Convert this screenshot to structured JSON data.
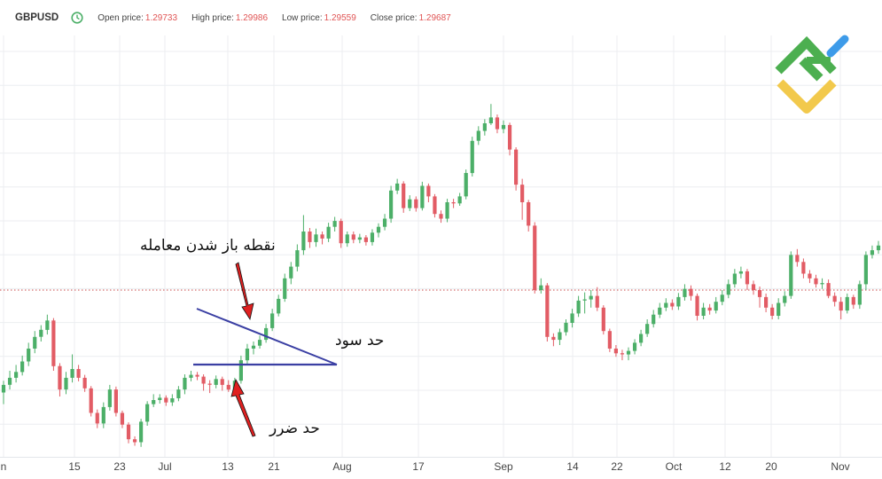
{
  "header": {
    "symbol": "GBPUSD",
    "clock_icon": "clock-icon",
    "open_label": "Open price:",
    "open_value": "1.29733",
    "high_label": "High price:",
    "high_value": "1.29986",
    "low_label": "Low price:",
    "low_value": "1.29559",
    "close_label": "Close price:",
    "close_value": "1.29687",
    "value_color": "#e05555"
  },
  "logo": {
    "icon": "litefinance-logo-icon",
    "colors": [
      "#4caf50",
      "#f2c94c",
      "#3d9be9"
    ]
  },
  "annotations": {
    "entry": "نقطه باز شدن معامله",
    "take_profit": "حد سود",
    "stop_loss": "حد ضرر",
    "triangle_color": "#3a3fa3",
    "arrow_color": "#e02020"
  },
  "chart_data": {
    "type": "candlestick",
    "symbol": "GBPUSD",
    "x_tick_labels": [
      "n",
      "15",
      "23",
      "Jul",
      "13",
      "21",
      "Aug",
      "17",
      "Sep",
      "14",
      "22",
      "Oct",
      "12",
      "20",
      "Nov"
    ],
    "reference_line_price": 1.264,
    "price_range": [
      1.2355,
      1.3075
    ],
    "grid": true,
    "up_color": "#4caf68",
    "down_color": "#e25c65",
    "candles": [
      [
        1.2465,
        1.2478,
        1.2485,
        1.2445
      ],
      [
        1.2478,
        1.249,
        1.2502,
        1.247
      ],
      [
        1.249,
        1.25,
        1.2512,
        1.2482
      ],
      [
        1.25,
        1.2518,
        1.2528,
        1.2494
      ],
      [
        1.2518,
        1.254,
        1.255,
        1.251
      ],
      [
        1.254,
        1.256,
        1.257,
        1.2532
      ],
      [
        1.256,
        1.2572,
        1.258,
        1.2552
      ],
      [
        1.2572,
        1.2588,
        1.2598,
        1.2564
      ],
      [
        1.2588,
        1.251,
        1.2592,
        1.2502
      ],
      [
        1.251,
        1.247,
        1.2515,
        1.2458
      ],
      [
        1.247,
        1.249,
        1.25,
        1.2462
      ],
      [
        1.249,
        1.2505,
        1.253,
        1.2482
      ],
      [
        1.2505,
        1.249,
        1.2512,
        1.2484
      ],
      [
        1.249,
        1.2472,
        1.2495,
        1.2466
      ],
      [
        1.2472,
        1.243,
        1.2476,
        1.2424
      ],
      [
        1.243,
        1.2412,
        1.2436,
        1.2404
      ],
      [
        1.2412,
        1.244,
        1.2448,
        1.2404
      ],
      [
        1.244,
        1.247,
        1.2478,
        1.2434
      ],
      [
        1.247,
        1.243,
        1.2475,
        1.2424
      ],
      [
        1.243,
        1.241,
        1.2434,
        1.2404
      ],
      [
        1.241,
        1.2385,
        1.2414,
        1.2378
      ],
      [
        1.2385,
        1.238,
        1.239,
        1.2374
      ],
      [
        1.238,
        1.2415,
        1.242,
        1.2372
      ],
      [
        1.2415,
        1.2445,
        1.245,
        1.2408
      ],
      [
        1.2445,
        1.2452,
        1.2462,
        1.244
      ],
      [
        1.2452,
        1.2456,
        1.2462,
        1.2446
      ],
      [
        1.2456,
        1.2448,
        1.246,
        1.2442
      ],
      [
        1.2448,
        1.2455,
        1.2462,
        1.2442
      ],
      [
        1.2455,
        1.247,
        1.2476,
        1.245
      ],
      [
        1.247,
        1.249,
        1.2496,
        1.2462
      ],
      [
        1.249,
        1.2495,
        1.2502,
        1.2484
      ],
      [
        1.2495,
        1.2492,
        1.25,
        1.2486
      ],
      [
        1.2492,
        1.248,
        1.2496,
        1.2468
      ],
      [
        1.248,
        1.2478,
        1.2486,
        1.2464
      ],
      [
        1.2478,
        1.2488,
        1.2494,
        1.2472
      ],
      [
        1.2488,
        1.2478,
        1.2492,
        1.2468
      ],
      [
        1.2478,
        1.247,
        1.2486,
        1.2466
      ],
      [
        1.247,
        1.2485,
        1.249,
        1.2465
      ],
      [
        1.2485,
        1.252,
        1.2528,
        1.248
      ],
      [
        1.252,
        1.254,
        1.2548,
        1.2514
      ],
      [
        1.254,
        1.2545,
        1.2552,
        1.253
      ],
      [
        1.2545,
        1.2555,
        1.2562,
        1.254
      ],
      [
        1.2555,
        1.2575,
        1.2582,
        1.255
      ],
      [
        1.2575,
        1.26,
        1.2608,
        1.257
      ],
      [
        1.26,
        1.2625,
        1.2632,
        1.2595
      ],
      [
        1.2625,
        1.266,
        1.2668,
        1.262
      ],
      [
        1.266,
        1.268,
        1.2688,
        1.265
      ],
      [
        1.268,
        1.2708,
        1.2718,
        1.2672
      ],
      [
        1.2708,
        1.274,
        1.2768,
        1.27
      ],
      [
        1.274,
        1.2722,
        1.2746,
        1.2712
      ],
      [
        1.2722,
        1.2735,
        1.2745,
        1.2714
      ],
      [
        1.2735,
        1.2728,
        1.274,
        1.2718
      ],
      [
        1.2728,
        1.2748,
        1.2755,
        1.2722
      ],
      [
        1.2748,
        1.2758,
        1.2765,
        1.274
      ],
      [
        1.2758,
        1.272,
        1.2762,
        1.2712
      ],
      [
        1.272,
        1.2735,
        1.274,
        1.2714
      ],
      [
        1.2735,
        1.2726,
        1.274,
        1.272
      ],
      [
        1.2726,
        1.273,
        1.2736,
        1.272
      ],
      [
        1.273,
        1.2722,
        1.2734,
        1.2716
      ],
      [
        1.2722,
        1.2738,
        1.2744,
        1.2716
      ],
      [
        1.2738,
        1.2748,
        1.2754,
        1.273
      ],
      [
        1.2748,
        1.2762,
        1.277,
        1.2742
      ],
      [
        1.2762,
        1.281,
        1.2818,
        1.2755
      ],
      [
        1.281,
        1.2822,
        1.283,
        1.2804
      ],
      [
        1.2822,
        1.278,
        1.2826,
        1.2772
      ],
      [
        1.278,
        1.2795,
        1.2802,
        1.2775
      ],
      [
        1.2795,
        1.278,
        1.28,
        1.2774
      ],
      [
        1.278,
        1.2818,
        1.2825,
        1.2776
      ],
      [
        1.2818,
        1.28,
        1.2822,
        1.279
      ],
      [
        1.28,
        1.277,
        1.2804,
        1.2764
      ],
      [
        1.277,
        1.2762,
        1.2776,
        1.2755
      ],
      [
        1.2762,
        1.279,
        1.2796,
        1.2756
      ],
      [
        1.279,
        1.2788,
        1.2796,
        1.278
      ],
      [
        1.2788,
        1.28,
        1.2806,
        1.2784
      ],
      [
        1.28,
        1.284,
        1.2846,
        1.2795
      ],
      [
        1.284,
        1.2895,
        1.2902,
        1.2834
      ],
      [
        1.2895,
        1.2912,
        1.292,
        1.2888
      ],
      [
        1.2912,
        1.2925,
        1.2932,
        1.2904
      ],
      [
        1.2925,
        1.2935,
        1.2958,
        1.2922
      ],
      [
        1.2935,
        1.2915,
        1.294,
        1.2908
      ],
      [
        1.2915,
        1.2922,
        1.293,
        1.2908
      ],
      [
        1.2922,
        1.288,
        1.2926,
        1.287
      ],
      [
        1.288,
        1.282,
        1.2884,
        1.281
      ],
      [
        1.282,
        1.279,
        1.283,
        1.276
      ],
      [
        1.279,
        1.275,
        1.2794,
        1.274
      ],
      [
        1.275,
        1.264,
        1.2756,
        1.2634
      ],
      [
        1.264,
        1.2648,
        1.266,
        1.2634
      ],
      [
        1.2648,
        1.256,
        1.2652,
        1.2552
      ],
      [
        1.256,
        1.2555,
        1.2566,
        1.2544
      ],
      [
        1.2555,
        1.2568,
        1.2574,
        1.2546
      ],
      [
        1.2568,
        1.2584,
        1.259,
        1.2562
      ],
      [
        1.2584,
        1.26,
        1.2608,
        1.2576
      ],
      [
        1.26,
        1.2622,
        1.263,
        1.2594
      ],
      [
        1.2622,
        1.2624,
        1.2636,
        1.26
      ],
      [
        1.2624,
        1.263,
        1.264,
        1.261
      ],
      [
        1.263,
        1.261,
        1.2645,
        1.2604
      ],
      [
        1.261,
        1.257,
        1.2614,
        1.2564
      ],
      [
        1.257,
        1.254,
        1.2574,
        1.2534
      ],
      [
        1.254,
        1.2532,
        1.2546,
        1.2526
      ],
      [
        1.2532,
        1.253,
        1.2538,
        1.252
      ],
      [
        1.253,
        1.2536,
        1.2542,
        1.252
      ],
      [
        1.2536,
        1.255,
        1.2556,
        1.253
      ],
      [
        1.255,
        1.2565,
        1.2572,
        1.2544
      ],
      [
        1.2565,
        1.2582,
        1.259,
        1.256
      ],
      [
        1.2582,
        1.2598,
        1.2606,
        1.2576
      ],
      [
        1.2598,
        1.261,
        1.2618,
        1.2592
      ],
      [
        1.261,
        1.2618,
        1.2626,
        1.2604
      ],
      [
        1.2618,
        1.2612,
        1.2624,
        1.2606
      ],
      [
        1.2612,
        1.2628,
        1.2635,
        1.2606
      ],
      [
        1.2628,
        1.2642,
        1.265,
        1.2622
      ],
      [
        1.2642,
        1.263,
        1.2648,
        1.2622
      ],
      [
        1.263,
        1.2596,
        1.2634,
        1.2588
      ],
      [
        1.2596,
        1.261,
        1.2618,
        1.259
      ],
      [
        1.261,
        1.2605,
        1.2616,
        1.2598
      ],
      [
        1.2605,
        1.262,
        1.2628,
        1.26
      ],
      [
        1.262,
        1.2632,
        1.264,
        1.2614
      ],
      [
        1.2632,
        1.265,
        1.2658,
        1.2626
      ],
      [
        1.265,
        1.2668,
        1.2676,
        1.2644
      ],
      [
        1.2668,
        1.2672,
        1.268,
        1.266
      ],
      [
        1.2672,
        1.265,
        1.2676,
        1.264
      ],
      [
        1.265,
        1.264,
        1.2656,
        1.2632
      ],
      [
        1.264,
        1.2628,
        1.2646,
        1.261
      ],
      [
        1.2628,
        1.261,
        1.2634,
        1.2602
      ],
      [
        1.261,
        1.2596,
        1.2616,
        1.259
      ],
      [
        1.2596,
        1.2618,
        1.2626,
        1.259
      ],
      [
        1.2618,
        1.263,
        1.2638,
        1.2612
      ],
      [
        1.263,
        1.27,
        1.2706,
        1.2625
      ],
      [
        1.27,
        1.2688,
        1.271,
        1.268
      ],
      [
        1.2688,
        1.2668,
        1.2694,
        1.266
      ],
      [
        1.2668,
        1.266,
        1.2674,
        1.2652
      ],
      [
        1.266,
        1.265,
        1.2666,
        1.2644
      ],
      [
        1.265,
        1.2652,
        1.266,
        1.2642
      ],
      [
        1.2652,
        1.263,
        1.2658,
        1.2626
      ],
      [
        1.263,
        1.262,
        1.2636,
        1.2612
      ],
      [
        1.262,
        1.2605,
        1.2628,
        1.259
      ],
      [
        1.2605,
        1.2628,
        1.2634,
        1.26
      ],
      [
        1.2628,
        1.2615,
        1.2632,
        1.2608
      ],
      [
        1.2615,
        1.265,
        1.2656,
        1.2608
      ],
      [
        1.265,
        1.27,
        1.2706,
        1.264
      ],
      [
        1.27,
        1.2708,
        1.2716,
        1.2694
      ],
      [
        1.2708,
        1.2716,
        1.2724,
        1.2702
      ]
    ]
  }
}
